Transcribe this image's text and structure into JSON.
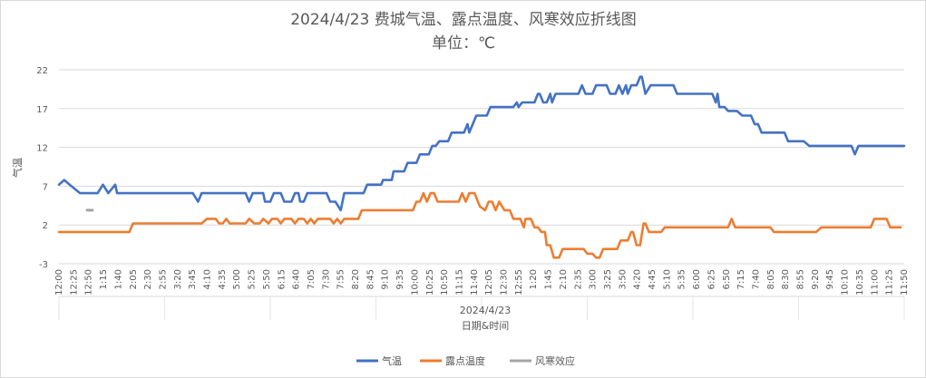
{
  "chart_data": {
    "type": "line",
    "title": "2024/4/23 费城气温、露点温度、风寒效应折线图",
    "subtitle": "单位：℃",
    "xlabel": "日期&时间",
    "ylabel": "气温",
    "x_group_label": "2024/4/23",
    "ylim": [
      -3,
      22
    ],
    "yticks": [
      -3,
      2,
      7,
      12,
      17,
      22
    ],
    "grid": true,
    "legend_position": "bottom",
    "x_tick_labels": [
      "12:00",
      "12:25",
      "12:50",
      "1:15",
      "1:40",
      "2:05",
      "2:30",
      "2:55",
      "3:20",
      "3:45",
      "4:10",
      "4:35",
      "5:00",
      "5:25",
      "5:50",
      "6:15",
      "6:40",
      "7:05",
      "7:30",
      "7:55",
      "8:20",
      "8:45",
      "9:10",
      "9:35",
      "10:00",
      "10:25",
      "10:50",
      "11:15",
      "11:40",
      "12:05",
      "12:30",
      "12:55",
      "1:20",
      "1:45",
      "2:10",
      "2:35",
      "3:00",
      "3:25",
      "3:50",
      "4:20",
      "4:45",
      "5:10",
      "5:35",
      "6:00",
      "6:25",
      "6:50",
      "7:15",
      "7:40",
      "8:05",
      "8:30",
      "8:55",
      "9:20",
      "9:45",
      "10:10",
      "10:35",
      "11:00",
      "11:25",
      "11:50"
    ],
    "series": [
      {
        "name": "气温",
        "color": "#4472C4",
        "points": [
          [
            0,
            7.2
          ],
          [
            3,
            7.8
          ],
          [
            6,
            7.2
          ],
          [
            12,
            6.1
          ],
          [
            22,
            6.1
          ],
          [
            25,
            7.2
          ],
          [
            28,
            6.1
          ],
          [
            32,
            7.2
          ],
          [
            33,
            6.1
          ],
          [
            50,
            6.1
          ],
          [
            54,
            6.1
          ],
          [
            62,
            6.1
          ],
          [
            76,
            6.1
          ],
          [
            79,
            5.0
          ],
          [
            81,
            6.1
          ],
          [
            106,
            6.1
          ],
          [
            108,
            5.0
          ],
          [
            110,
            6.1
          ],
          [
            116,
            6.1
          ],
          [
            117,
            5.0
          ],
          [
            120,
            5.0
          ],
          [
            122,
            6.1
          ],
          [
            126,
            6.1
          ],
          [
            128,
            5.0
          ],
          [
            132,
            5.0
          ],
          [
            134,
            6.1
          ],
          [
            136,
            6.1
          ],
          [
            137,
            5.0
          ],
          [
            139,
            5.0
          ],
          [
            141,
            6.1
          ],
          [
            152,
            6.1
          ],
          [
            154,
            5.0
          ],
          [
            157,
            5.0
          ],
          [
            160,
            3.9
          ],
          [
            162,
            6.1
          ],
          [
            173,
            6.1
          ],
          [
            175,
            7.2
          ],
          [
            183,
            7.2
          ],
          [
            184,
            7.8
          ],
          [
            189,
            7.8
          ],
          [
            190,
            8.9
          ],
          [
            196,
            8.9
          ],
          [
            198,
            10.0
          ],
          [
            203,
            10.0
          ],
          [
            205,
            11.1
          ],
          [
            210,
            11.1
          ],
          [
            212,
            12.2
          ],
          [
            214,
            12.2
          ],
          [
            216,
            12.8
          ],
          [
            221,
            12.8
          ],
          [
            223,
            13.9
          ],
          [
            230,
            13.9
          ],
          [
            232,
            15.0
          ],
          [
            233,
            13.9
          ],
          [
            235,
            15.0
          ],
          [
            237,
            16.1
          ],
          [
            243,
            16.1
          ],
          [
            245,
            17.2
          ],
          [
            258,
            17.2
          ],
          [
            260,
            17.8
          ],
          [
            261,
            17.2
          ],
          [
            263,
            17.8
          ],
          [
            270,
            17.8
          ],
          [
            272,
            18.9
          ],
          [
            273,
            18.9
          ],
          [
            275,
            17.8
          ],
          [
            277,
            17.8
          ],
          [
            279,
            18.9
          ],
          [
            280,
            17.8
          ],
          [
            282,
            18.9
          ],
          [
            295,
            18.9
          ],
          [
            297,
            20.0
          ],
          [
            299,
            18.9
          ],
          [
            303,
            18.9
          ],
          [
            305,
            20.0
          ],
          [
            311,
            20.0
          ],
          [
            313,
            18.9
          ],
          [
            316,
            18.9
          ],
          [
            318,
            20.0
          ],
          [
            320,
            18.9
          ],
          [
            322,
            20.0
          ],
          [
            323,
            18.9
          ],
          [
            325,
            20.0
          ],
          [
            328,
            20.0
          ],
          [
            330,
            21.1
          ],
          [
            331,
            21.1
          ],
          [
            333,
            18.9
          ],
          [
            336,
            20.0
          ],
          [
            349,
            20.0
          ],
          [
            351,
            18.9
          ],
          [
            371,
            18.9
          ],
          [
            373,
            17.8
          ],
          [
            374,
            18.9
          ],
          [
            375,
            17.2
          ],
          [
            378,
            17.2
          ],
          [
            380,
            16.7
          ],
          [
            385,
            16.7
          ],
          [
            388,
            16.1
          ],
          [
            393,
            16.1
          ],
          [
            395,
            15.0
          ],
          [
            397,
            15.0
          ],
          [
            399,
            13.9
          ],
          [
            412,
            13.9
          ],
          [
            414,
            12.8
          ],
          [
            423,
            12.8
          ],
          [
            426,
            12.2
          ],
          [
            450,
            12.2
          ],
          [
            452,
            11.1
          ],
          [
            454,
            12.2
          ],
          [
            480,
            12.2
          ]
        ]
      },
      {
        "name": "露点温度",
        "color": "#ED7D31",
        "points": [
          [
            0,
            1.1
          ],
          [
            40,
            1.1
          ],
          [
            42,
            2.2
          ],
          [
            81,
            2.2
          ],
          [
            84,
            2.8
          ],
          [
            89,
            2.8
          ],
          [
            91,
            2.2
          ],
          [
            93,
            2.2
          ],
          [
            95,
            2.8
          ],
          [
            97,
            2.2
          ],
          [
            106,
            2.2
          ],
          [
            108,
            2.8
          ],
          [
            111,
            2.2
          ],
          [
            114,
            2.2
          ],
          [
            116,
            2.8
          ],
          [
            119,
            2.2
          ],
          [
            121,
            2.8
          ],
          [
            124,
            2.8
          ],
          [
            126,
            2.2
          ],
          [
            128,
            2.8
          ],
          [
            132,
            2.8
          ],
          [
            134,
            2.2
          ],
          [
            136,
            2.8
          ],
          [
            139,
            2.8
          ],
          [
            141,
            2.2
          ],
          [
            143,
            2.8
          ],
          [
            145,
            2.2
          ],
          [
            147,
            2.8
          ],
          [
            154,
            2.8
          ],
          [
            156,
            2.2
          ],
          [
            158,
            2.8
          ],
          [
            160,
            2.2
          ],
          [
            162,
            2.8
          ],
          [
            170,
            2.8
          ],
          [
            172,
            3.9
          ],
          [
            201,
            3.9
          ],
          [
            203,
            5.0
          ],
          [
            205,
            5.0
          ],
          [
            207,
            6.1
          ],
          [
            209,
            5.0
          ],
          [
            211,
            6.1
          ],
          [
            213,
            6.1
          ],
          [
            215,
            5.0
          ],
          [
            227,
            5.0
          ],
          [
            229,
            6.1
          ],
          [
            231,
            5.0
          ],
          [
            233,
            6.1
          ],
          [
            236,
            6.1
          ],
          [
            239,
            4.4
          ],
          [
            242,
            3.9
          ],
          [
            244,
            5.0
          ],
          [
            246,
            5.0
          ],
          [
            248,
            3.9
          ],
          [
            250,
            5.0
          ],
          [
            253,
            3.9
          ],
          [
            256,
            3.9
          ],
          [
            258,
            2.8
          ],
          [
            262,
            2.8
          ],
          [
            264,
            1.7
          ],
          [
            265,
            2.8
          ],
          [
            268,
            2.8
          ],
          [
            270,
            1.7
          ],
          [
            272,
            1.7
          ],
          [
            274,
            1.1
          ],
          [
            276,
            1.1
          ],
          [
            277,
            -0.6
          ],
          [
            279,
            -0.6
          ],
          [
            281,
            -2.2
          ],
          [
            284,
            -2.2
          ],
          [
            286,
            -1.1
          ],
          [
            298,
            -1.1
          ],
          [
            300,
            -1.7
          ],
          [
            303,
            -1.7
          ],
          [
            305,
            -2.2
          ],
          [
            307,
            -2.2
          ],
          [
            309,
            -1.1
          ],
          [
            317,
            -1.1
          ],
          [
            319,
            0.0
          ],
          [
            323,
            0.0
          ],
          [
            325,
            1.1
          ],
          [
            326,
            1.1
          ],
          [
            328,
            -0.6
          ],
          [
            330,
            -0.6
          ],
          [
            332,
            2.2
          ],
          [
            333,
            2.2
          ],
          [
            335,
            1.1
          ],
          [
            342,
            1.1
          ],
          [
            344,
            1.7
          ],
          [
            380,
            1.7
          ],
          [
            382,
            2.8
          ],
          [
            384,
            1.7
          ],
          [
            404,
            1.7
          ],
          [
            406,
            1.1
          ],
          [
            430,
            1.1
          ],
          [
            433,
            1.7
          ],
          [
            461,
            1.7
          ],
          [
            463,
            2.8
          ],
          [
            470,
            2.8
          ],
          [
            472,
            1.7
          ],
          [
            478,
            1.7
          ]
        ]
      },
      {
        "name": "风寒效应",
        "color": "#A5A5A5",
        "points": [
          [
            16,
            3.9
          ],
          [
            19,
            3.9
          ]
        ]
      }
    ]
  }
}
